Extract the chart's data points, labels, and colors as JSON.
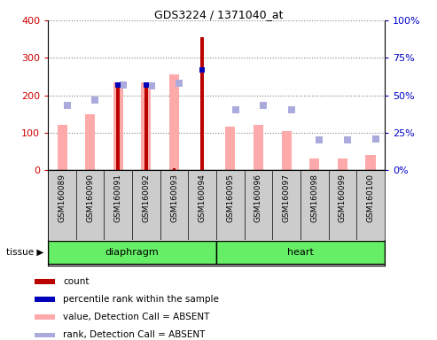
{
  "title": "GDS3224 / 1371040_at",
  "samples": [
    "GSM160089",
    "GSM160090",
    "GSM160091",
    "GSM160092",
    "GSM160093",
    "GSM160094",
    "GSM160095",
    "GSM160096",
    "GSM160097",
    "GSM160098",
    "GSM160099",
    "GSM160100"
  ],
  "count": [
    0,
    0,
    235,
    235,
    5,
    355,
    0,
    0,
    0,
    0,
    0,
    0
  ],
  "pct_rank": [
    0,
    0,
    57,
    57,
    0,
    67,
    0,
    0,
    0,
    0,
    0,
    0
  ],
  "value_absent": [
    120,
    150,
    235,
    235,
    255,
    0,
    115,
    120,
    105,
    30,
    30,
    40
  ],
  "rank_absent_pct": [
    43,
    47,
    57,
    56,
    58,
    0,
    40,
    43,
    40,
    20,
    20,
    21
  ],
  "ylim_left": [
    0,
    400
  ],
  "ylim_right": [
    0,
    100
  ],
  "yticks_left": [
    0,
    100,
    200,
    300,
    400
  ],
  "yticks_right": [
    0,
    25,
    50,
    75,
    100
  ],
  "tissue_groups": [
    {
      "label": "diaphragm",
      "start": 0,
      "end": 6
    },
    {
      "label": "heart",
      "start": 6,
      "end": 12
    }
  ],
  "color_count": "#bb0000",
  "color_pct_rank": "#0000bb",
  "color_value_absent": "#ffaaaa",
  "color_rank_absent": "#aaaadd",
  "color_tissue_bg": "#66ee66",
  "color_sample_bg": "#cccccc",
  "left_label_color": "#cc0000",
  "right_label_color": "#0000cc",
  "legend_items": [
    {
      "label": "count",
      "color": "#bb0000"
    },
    {
      "label": "percentile rank within the sample",
      "color": "#0000bb"
    },
    {
      "label": "value, Detection Call = ABSENT",
      "color": "#ffaaaa"
    },
    {
      "label": "rank, Detection Call = ABSENT",
      "color": "#aaaadd"
    }
  ]
}
